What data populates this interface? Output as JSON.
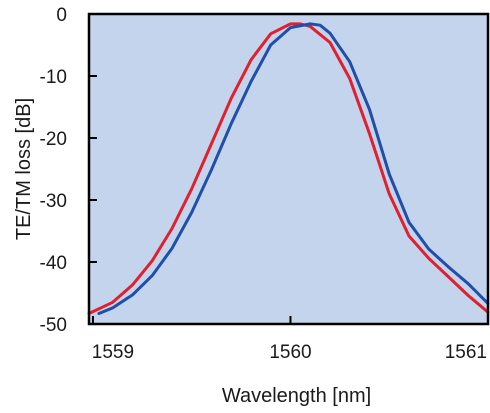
{
  "chart_data": {
    "type": "line",
    "title": "",
    "xlabel": "Wavelength [nm]",
    "ylabel": "TE/TM loss [dB]",
    "xlim": [
      1558.98,
      1561.0
    ],
    "ylim": [
      -50,
      0
    ],
    "x_ticks": [
      1559,
      1560,
      1561
    ],
    "y_ticks": [
      0,
      -10,
      -20,
      -30,
      -40,
      -50
    ],
    "x_tick_labels": [
      "1559",
      "1560",
      "1561"
    ],
    "y_tick_labels": [
      "0",
      "-10",
      "-20",
      "-30",
      "-40",
      "-50"
    ],
    "grid": false,
    "legend": "none",
    "colors": {
      "background": "#c5d4ed",
      "frame": "#000000"
    },
    "series": [
      {
        "color": "#e0202e",
        "points": [
          [
            1558.98,
            -48.3
          ],
          [
            1559.1,
            -46.5
          ],
          [
            1559.2,
            -43.7
          ],
          [
            1559.3,
            -39.8
          ],
          [
            1559.4,
            -34.6
          ],
          [
            1559.5,
            -28.2
          ],
          [
            1559.6,
            -20.9
          ],
          [
            1559.7,
            -13.6
          ],
          [
            1559.8,
            -7.4
          ],
          [
            1559.9,
            -3.2
          ],
          [
            1560.0,
            -1.6
          ],
          [
            1560.05,
            -1.6
          ],
          [
            1560.1,
            -2.0
          ],
          [
            1560.2,
            -4.6
          ],
          [
            1560.3,
            -10.4
          ],
          [
            1560.4,
            -19.3
          ],
          [
            1560.5,
            -29.0
          ],
          [
            1560.6,
            -35.8
          ],
          [
            1560.7,
            -39.4
          ],
          [
            1560.8,
            -42.4
          ],
          [
            1560.9,
            -45.4
          ],
          [
            1561.0,
            -48.1
          ]
        ]
      },
      {
        "color": "#1f4fa8",
        "points": [
          [
            1559.03,
            -48.3
          ],
          [
            1559.1,
            -47.4
          ],
          [
            1559.2,
            -45.3
          ],
          [
            1559.3,
            -42.2
          ],
          [
            1559.4,
            -37.8
          ],
          [
            1559.5,
            -32.0
          ],
          [
            1559.6,
            -25.1
          ],
          [
            1559.7,
            -17.7
          ],
          [
            1559.8,
            -10.9
          ],
          [
            1559.9,
            -5.0
          ],
          [
            1560.0,
            -2.2
          ],
          [
            1560.1,
            -1.6
          ],
          [
            1560.15,
            -1.8
          ],
          [
            1560.2,
            -3.1
          ],
          [
            1560.3,
            -7.7
          ],
          [
            1560.4,
            -15.4
          ],
          [
            1560.5,
            -25.8
          ],
          [
            1560.6,
            -33.6
          ],
          [
            1560.7,
            -37.9
          ],
          [
            1560.8,
            -40.8
          ],
          [
            1560.9,
            -43.5
          ],
          [
            1561.0,
            -46.7
          ]
        ]
      }
    ]
  }
}
